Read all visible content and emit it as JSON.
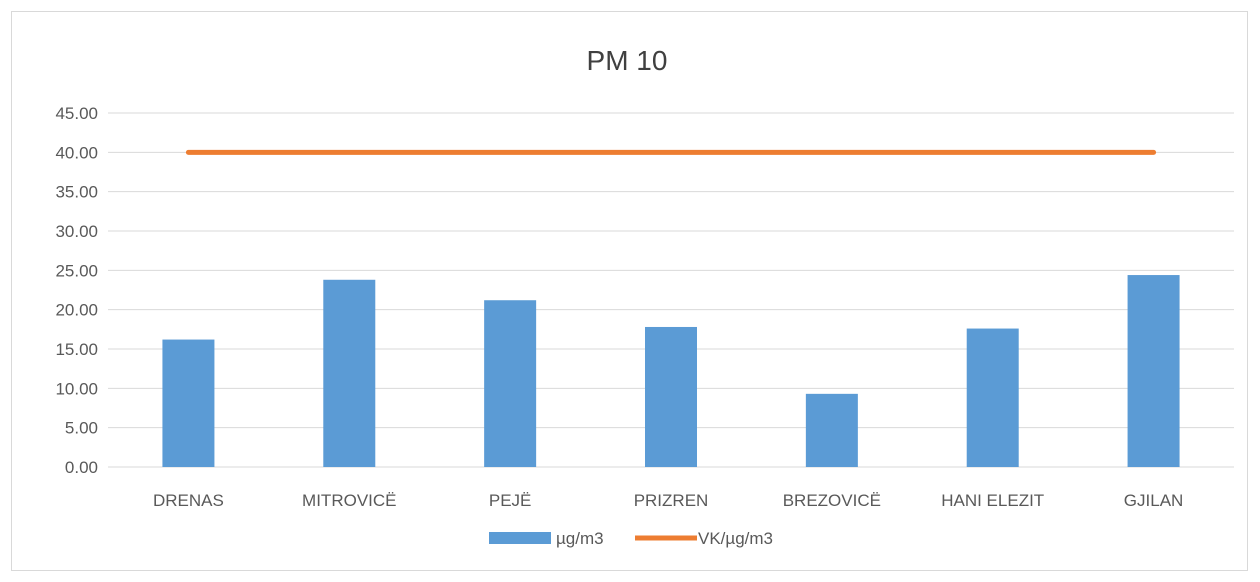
{
  "chart_data": {
    "type": "bar",
    "title": "PM 10",
    "xlabel": "",
    "ylabel": "",
    "categories": [
      "DRENAS",
      "MITROVICË",
      "PEJË",
      "PRIZREN",
      "BREZOVICË",
      "HANI ELEZIT",
      "GJILAN"
    ],
    "series": [
      {
        "name": "µg/m3",
        "type": "bar",
        "color": "#5b9bd5",
        "values": [
          16.2,
          23.8,
          21.2,
          17.8,
          9.3,
          17.6,
          24.4
        ]
      },
      {
        "name": "VK/µg/m3",
        "type": "line",
        "color": "#ed7d31",
        "values": [
          40,
          40,
          40,
          40,
          40,
          40,
          40
        ]
      }
    ],
    "ylim": [
      0,
      45
    ],
    "yticks": [
      "0.00",
      "5.00",
      "10.00",
      "15.00",
      "20.00",
      "25.00",
      "30.00",
      "35.00",
      "40.00",
      "45.00"
    ],
    "grid": true,
    "legend_position": "bottom"
  }
}
